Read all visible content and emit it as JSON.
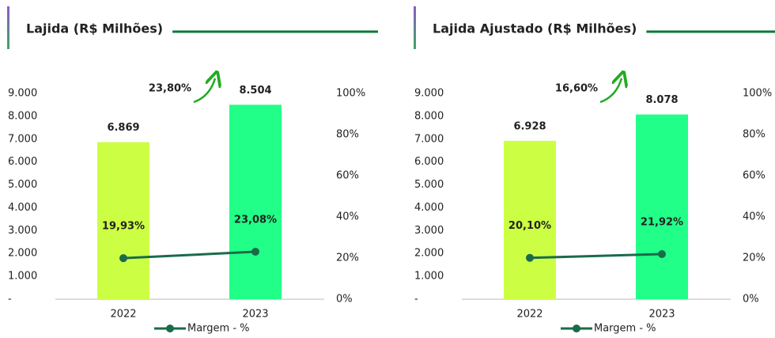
{
  "chart_data": [
    {
      "type": "bar",
      "title": "Lajida (R$ Milhões)",
      "categories": [
        "2022",
        "2023"
      ],
      "series": [
        {
          "type": "bar",
          "colors": [
            "#ccff44",
            "#22ff88"
          ],
          "values": [
            6869,
            8504
          ],
          "value_labels": [
            "6.869",
            "8.504"
          ]
        },
        {
          "type": "line",
          "name": "Margem - %",
          "color": "#1a6b4a",
          "axis": "y2",
          "values": [
            19.93,
            23.08
          ],
          "value_labels": [
            "19,93%",
            "23,08%"
          ]
        }
      ],
      "annotation": "23,80%",
      "ylim": [
        0,
        9000
      ],
      "yticks": [
        {
          "value": 0,
          "label": "-"
        },
        {
          "value": 1000,
          "label": "1.000"
        },
        {
          "value": 2000,
          "label": "2.000"
        },
        {
          "value": 3000,
          "label": "3.000"
        },
        {
          "value": 4000,
          "label": "4.000"
        },
        {
          "value": 5000,
          "label": "5.000"
        },
        {
          "value": 6000,
          "label": "6.000"
        },
        {
          "value": 7000,
          "label": "7.000"
        },
        {
          "value": 8000,
          "label": "8.000"
        },
        {
          "value": 9000,
          "label": "9.000"
        }
      ],
      "y2lim": [
        0,
        100
      ],
      "y2ticks": [
        {
          "value": 0,
          "label": "0%"
        },
        {
          "value": 20,
          "label": "20%"
        },
        {
          "value": 40,
          "label": "40%"
        },
        {
          "value": 60,
          "label": "60%"
        },
        {
          "value": 80,
          "label": "80%"
        },
        {
          "value": 100,
          "label": "100%"
        }
      ]
    },
    {
      "type": "bar",
      "title": "Lajida Ajustado (R$ Milhões)",
      "categories": [
        "2022",
        "2023"
      ],
      "series": [
        {
          "type": "bar",
          "colors": [
            "#ccff44",
            "#22ff88"
          ],
          "values": [
            6928,
            8078
          ],
          "value_labels": [
            "6.928",
            "8.078"
          ]
        },
        {
          "type": "line",
          "name": "Margem - %",
          "color": "#1a6b4a",
          "axis": "y2",
          "values": [
            20.1,
            21.92
          ],
          "value_labels": [
            "20,10%",
            "21,92%"
          ]
        }
      ],
      "annotation": "16,60%",
      "ylim": [
        0,
        9000
      ],
      "yticks": [
        {
          "value": 0,
          "label": "-"
        },
        {
          "value": 1000,
          "label": "1.000"
        },
        {
          "value": 2000,
          "label": "2.000"
        },
        {
          "value": 3000,
          "label": "3.000"
        },
        {
          "value": 4000,
          "label": "4.000"
        },
        {
          "value": 5000,
          "label": "5.000"
        },
        {
          "value": 6000,
          "label": "6.000"
        },
        {
          "value": 7000,
          "label": "7.000"
        },
        {
          "value": 8000,
          "label": "8.000"
        },
        {
          "value": 9000,
          "label": "9.000"
        }
      ],
      "y2lim": [
        0,
        100
      ],
      "y2ticks": [
        {
          "value": 0,
          "label": "0%"
        },
        {
          "value": 20,
          "label": "20%"
        },
        {
          "value": 40,
          "label": "40%"
        },
        {
          "value": 60,
          "label": "60%"
        },
        {
          "value": 80,
          "label": "80%"
        },
        {
          "value": 100,
          "label": "100%"
        }
      ]
    }
  ]
}
